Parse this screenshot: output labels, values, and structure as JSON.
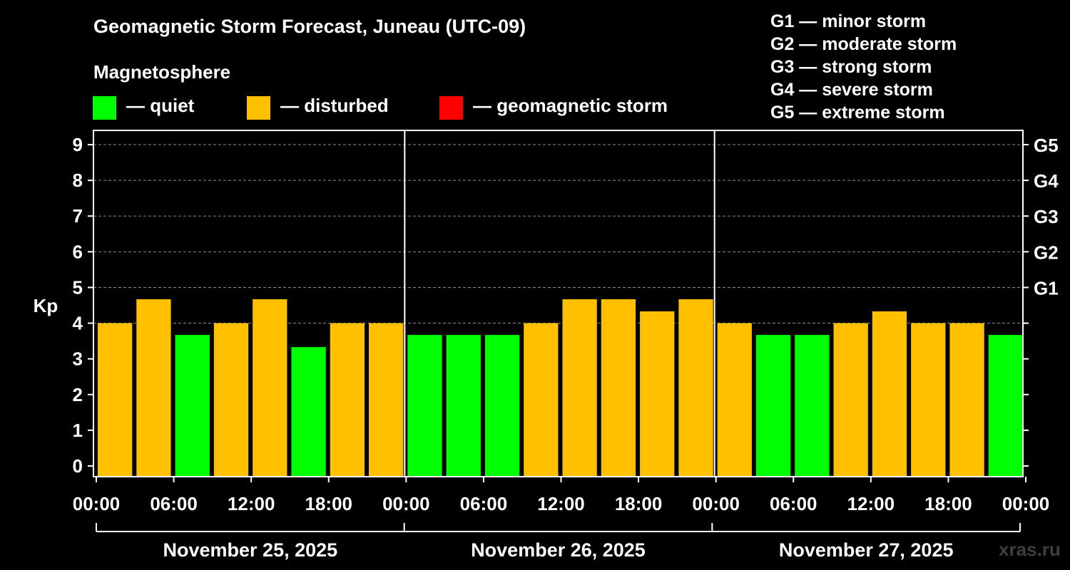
{
  "title": "Geomagnetic Storm Forecast, Juneau (UTC-09)",
  "legend": {
    "heading": "Magnetosphere",
    "items": [
      {
        "label": "— quiet",
        "color": "#00ff00"
      },
      {
        "label": "— disturbed",
        "color": "#ffc000"
      },
      {
        "label": "— geomagnetic storm",
        "color": "#ff0000"
      }
    ]
  },
  "storm_levels": [
    "G1 — minor storm",
    "G2 — moderate storm",
    "G3 — strong storm",
    "G4 — severe storm",
    "G5 — extreme storm"
  ],
  "watermark": "xras.ru",
  "chart_data": {
    "type": "bar",
    "ylabel": "Kp",
    "ylim": [
      -0.3,
      9.4
    ],
    "yticks": [
      "0",
      "1",
      "2",
      "3",
      "4",
      "5",
      "6",
      "7",
      "8",
      "9"
    ],
    "right_ticks": [
      {
        "kp": 5,
        "label": "G1"
      },
      {
        "kp": 6,
        "label": "G2"
      },
      {
        "kp": 7,
        "label": "G3"
      },
      {
        "kp": 8,
        "label": "G4"
      },
      {
        "kp": 9,
        "label": "G5"
      }
    ],
    "xticks": [
      "00:00",
      "06:00",
      "12:00",
      "18:00",
      "00:00",
      "06:00",
      "12:00",
      "18:00",
      "00:00",
      "06:00",
      "12:00",
      "18:00",
      "00:00"
    ],
    "days": [
      "November 25, 2025",
      "November 26, 2025",
      "November 27, 2025"
    ],
    "grid": true,
    "quiet_color": "#00ff00",
    "disturbed_color": "#ffc000",
    "storm_color": "#ff0000",
    "values": [
      4.0,
      4.67,
      3.67,
      4.0,
      4.67,
      3.33,
      4.0,
      4.0,
      3.67,
      3.67,
      3.67,
      4.0,
      4.67,
      4.67,
      4.33,
      4.67,
      4.0,
      3.67,
      3.67,
      4.0,
      4.33,
      4.0,
      4.0,
      3.67
    ],
    "status": [
      "disturbed",
      "disturbed",
      "quiet",
      "disturbed",
      "disturbed",
      "quiet",
      "disturbed",
      "disturbed",
      "quiet",
      "quiet",
      "quiet",
      "disturbed",
      "disturbed",
      "disturbed",
      "disturbed",
      "disturbed",
      "disturbed",
      "quiet",
      "quiet",
      "disturbed",
      "disturbed",
      "disturbed",
      "disturbed",
      "quiet"
    ]
  }
}
